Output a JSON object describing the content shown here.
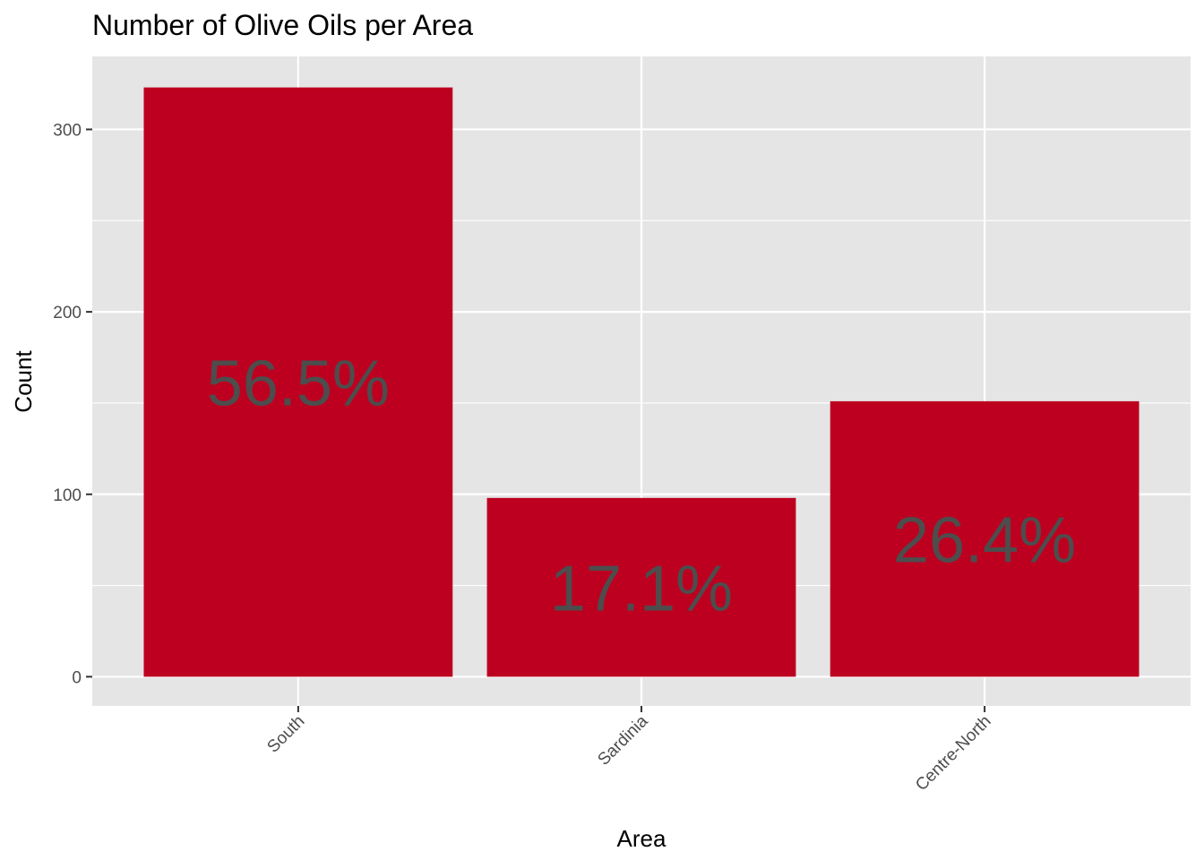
{
  "chart_data": {
    "type": "bar",
    "title": "Number of Olive Oils per Area",
    "xlabel": "Area",
    "ylabel": "Count",
    "categories": [
      "South",
      "Sardinia",
      "Centre-North"
    ],
    "values": [
      323,
      98,
      151
    ],
    "data_labels": [
      "56.5%",
      "17.1%",
      "26.4%"
    ],
    "y_ticks": [
      0,
      100,
      200,
      300
    ],
    "y_tick_labels": [
      "0",
      "100",
      "200",
      "300"
    ],
    "ylim": [
      -16,
      340
    ],
    "grid": true,
    "legend": "none",
    "colors": {
      "bar": "#bd0020",
      "panel": "#e5e5e5",
      "grid": "#ffffff",
      "tick_text": "#4d4d4d",
      "label_text": "#4d4d4d"
    }
  }
}
